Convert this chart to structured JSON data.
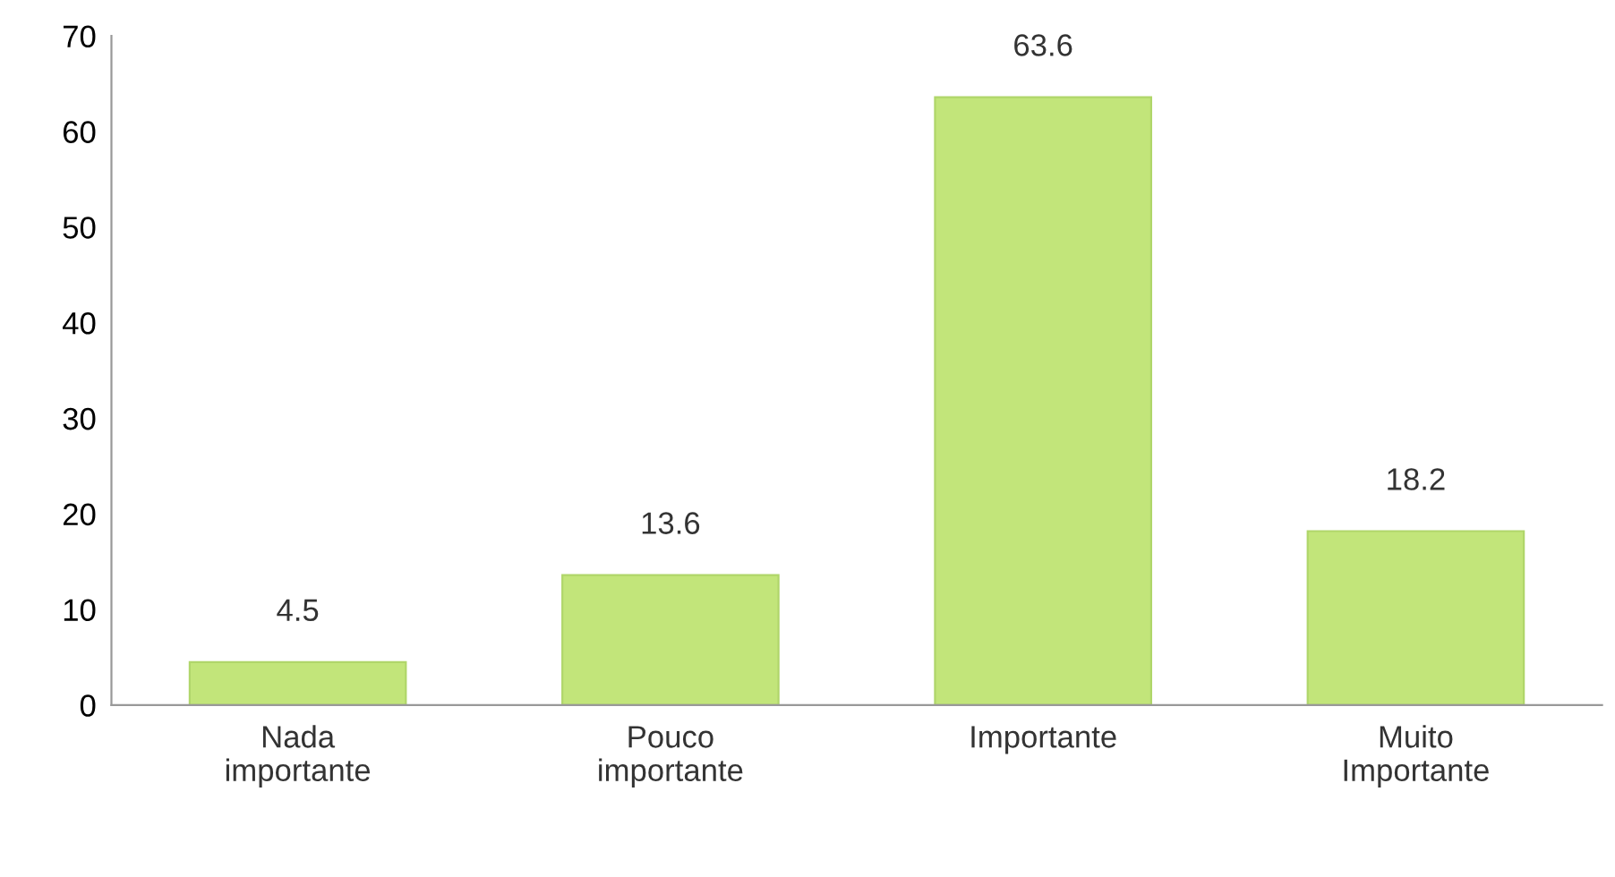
{
  "chart_data": {
    "type": "bar",
    "categories": [
      "Nada\nimportante",
      "Pouco\nimportante",
      "Importante",
      "Muito\nImportante"
    ],
    "values": [
      4.5,
      13.6,
      63.6,
      18.2
    ],
    "color": "#c2e57a",
    "ylim": [
      0,
      70
    ],
    "yticks": [
      0,
      10,
      20,
      30,
      40,
      50,
      60,
      70
    ],
    "grid": false,
    "data_labels": true
  }
}
